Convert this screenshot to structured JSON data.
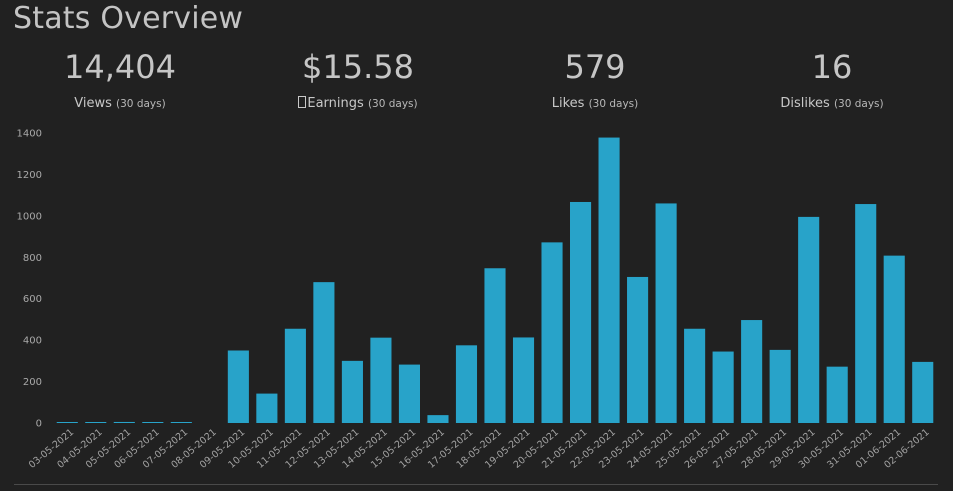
{
  "header": {
    "title": "Stats Overview"
  },
  "stats": [
    {
      "value": "14,404",
      "label": "Views",
      "period": "(30 days)"
    },
    {
      "value": "$15.58",
      "label": "Earnings",
      "period": "(30 days)"
    },
    {
      "value": "579",
      "label": "Likes",
      "period": "(30 days)"
    },
    {
      "value": "16",
      "label": "Dislikes",
      "period": "(30 days)"
    }
  ],
  "chart_data": {
    "type": "bar",
    "title": "",
    "xlabel": "",
    "ylabel": "",
    "ylim": [
      0,
      1400
    ],
    "yticks": [
      0,
      200,
      400,
      600,
      800,
      1000,
      1200,
      1400
    ],
    "grid": false,
    "legend": "none",
    "bar_color": "#28a3c9",
    "categories": [
      "03-05-2021",
      "04-05-2021",
      "05-05-2021",
      "06-05-2021",
      "07-05-2021",
      "08-05-2021",
      "09-05-2021",
      "10-05-2021",
      "11-05-2021",
      "12-05-2021",
      "13-05-2021",
      "14-05-2021",
      "15-05-2021",
      "16-05-2021",
      "17-05-2021",
      "18-05-2021",
      "19-05-2021",
      "20-05-2021",
      "21-05-2021",
      "22-05-2021",
      "23-05-2021",
      "24-05-2021",
      "25-05-2021",
      "26-05-2021",
      "27-05-2021",
      "28-05-2021",
      "29-05-2021",
      "30-05-2021",
      "31-05-2021",
      "01-06-2021",
      "02-06-2021"
    ],
    "values": [
      3,
      4,
      5,
      4,
      4,
      0,
      350,
      142,
      455,
      680,
      300,
      412,
      282,
      38,
      375,
      747,
      413,
      872,
      1067,
      1378,
      705,
      1060,
      455,
      345,
      497,
      353,
      995,
      272,
      1057,
      808,
      295
    ]
  }
}
